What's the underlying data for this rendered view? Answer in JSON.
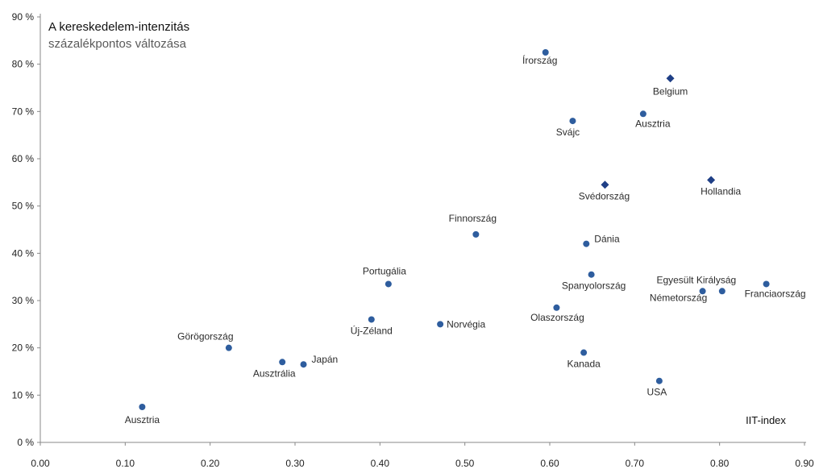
{
  "chart_data": {
    "type": "scatter",
    "title_line1": "A kereskedelem-intenzitás",
    "title_line2": "százalékpontos változása",
    "xlabel": "IIT-index",
    "ylabel": "",
    "xlim": [
      0.0,
      0.9
    ],
    "ylim": [
      0,
      90
    ],
    "x_ticks": [
      0.0,
      0.1,
      0.2,
      0.3,
      0.4,
      0.5,
      0.6,
      0.7,
      0.8,
      0.9
    ],
    "x_tick_labels": [
      "0.00",
      "0.10",
      "0.20",
      "0.30",
      "0.40",
      "0.50",
      "0.60",
      "0.70",
      "0.80",
      "0.90"
    ],
    "y_ticks": [
      0,
      10,
      20,
      30,
      40,
      50,
      60,
      70,
      80,
      90
    ],
    "y_tick_labels": [
      "0 %",
      "10 %",
      "20 %",
      "30 %",
      "40 %",
      "50 %",
      "60 %",
      "70 %",
      "80 %",
      "90 %"
    ],
    "grid": false,
    "marker_color": "#2e5d9e",
    "diamond_color": "#1f3f86",
    "points": [
      {
        "label": "Írország",
        "x": 0.595,
        "y": 82.5,
        "marker": "circle"
      },
      {
        "label": "Belgium",
        "x": 0.742,
        "y": 77.0,
        "marker": "diamond"
      },
      {
        "label": "Ausztria",
        "x": 0.71,
        "y": 69.5,
        "marker": "circle"
      },
      {
        "label": "Svájc",
        "x": 0.627,
        "y": 68.0,
        "marker": "circle"
      },
      {
        "label": "Svédország",
        "x": 0.665,
        "y": 54.5,
        "marker": "diamond"
      },
      {
        "label": "Hollandia",
        "x": 0.79,
        "y": 55.5,
        "marker": "diamond"
      },
      {
        "label": "Finnország",
        "x": 0.513,
        "y": 44.0,
        "marker": "circle"
      },
      {
        "label": "Dánia",
        "x": 0.643,
        "y": 42.0,
        "marker": "circle"
      },
      {
        "label": "Portugália",
        "x": 0.41,
        "y": 33.5,
        "marker": "circle"
      },
      {
        "label": "Spanyolország",
        "x": 0.649,
        "y": 35.5,
        "marker": "circle"
      },
      {
        "label": "Egyesült Királyság",
        "x": 0.803,
        "y": 32.0,
        "marker": "circle"
      },
      {
        "label": "Franciaország",
        "x": 0.855,
        "y": 33.5,
        "marker": "circle"
      },
      {
        "label": "Németország",
        "x": 0.78,
        "y": 32.0,
        "marker": "circle"
      },
      {
        "label": "Olaszország",
        "x": 0.608,
        "y": 28.5,
        "marker": "circle"
      },
      {
        "label": "Új-Zéland",
        "x": 0.39,
        "y": 26.0,
        "marker": "circle"
      },
      {
        "label": "Norvégia",
        "x": 0.471,
        "y": 25.0,
        "marker": "circle"
      },
      {
        "label": "Görögország",
        "x": 0.222,
        "y": 20.0,
        "marker": "circle"
      },
      {
        "label": "Kanada",
        "x": 0.64,
        "y": 19.0,
        "marker": "circle"
      },
      {
        "label": "Japán",
        "x": 0.31,
        "y": 16.5,
        "marker": "circle"
      },
      {
        "label": "Ausztrália",
        "x": 0.285,
        "y": 17.0,
        "marker": "circle"
      },
      {
        "label": "USA",
        "x": 0.729,
        "y": 13.0,
        "marker": "circle"
      },
      {
        "label": "Ausztria",
        "x": 0.12,
        "y": 7.5,
        "marker": "circle"
      }
    ]
  }
}
